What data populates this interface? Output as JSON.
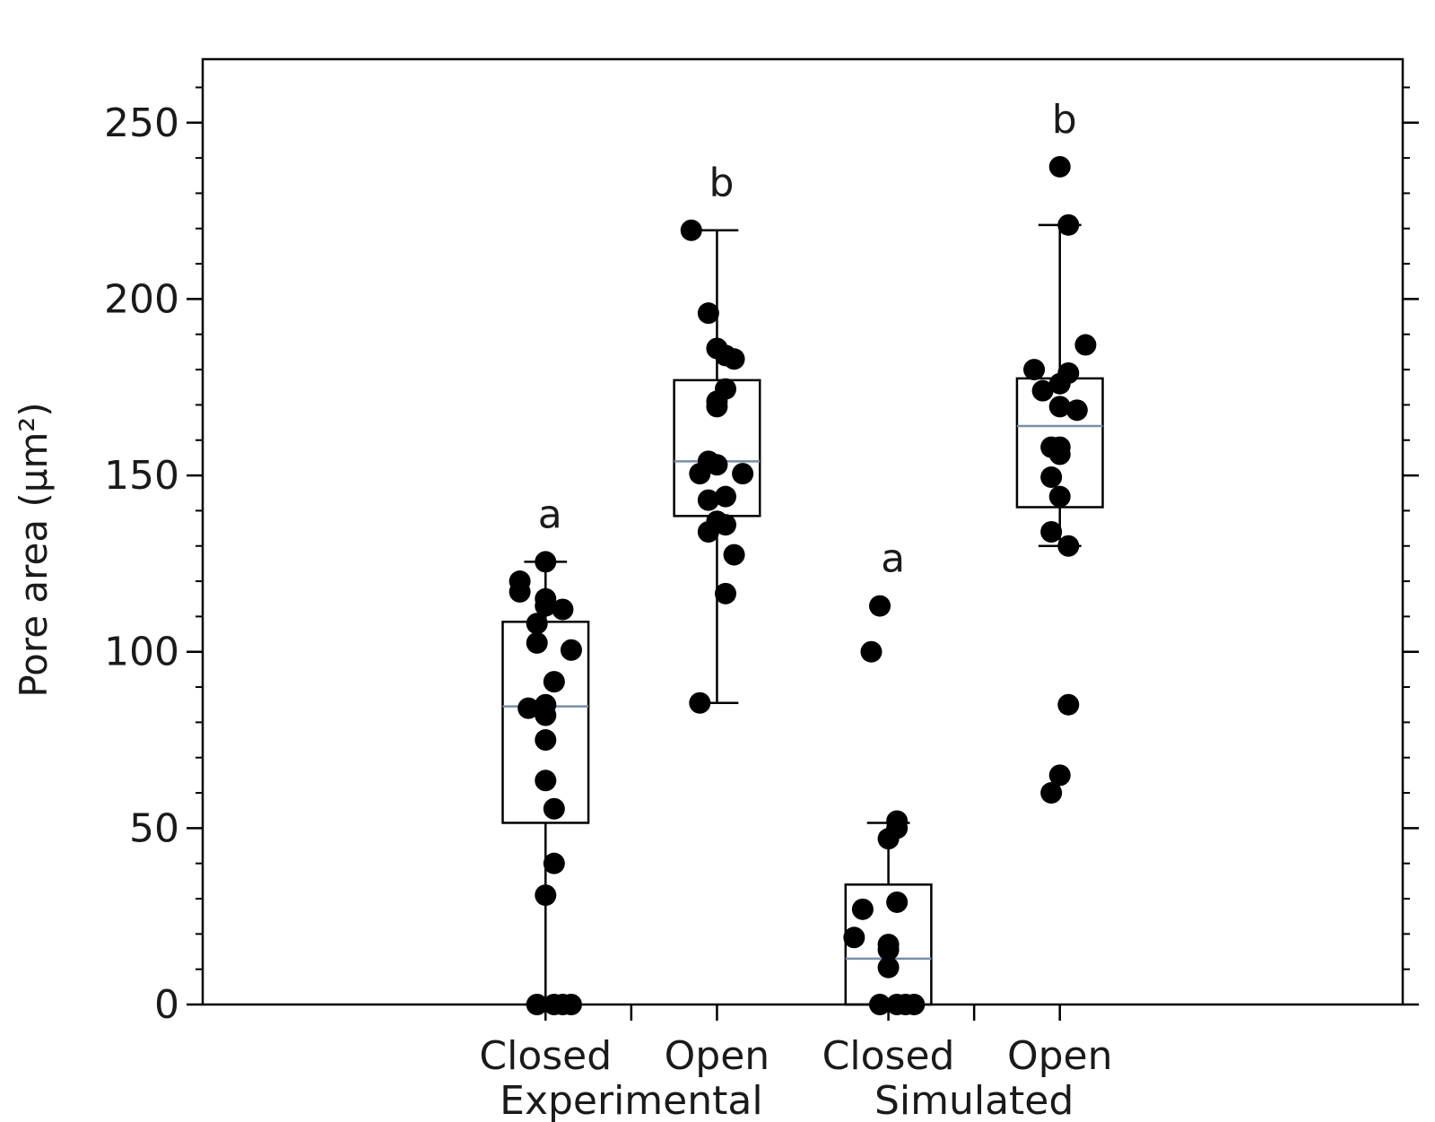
{
  "chart_data": {
    "type": "box",
    "ylabel": "Pore area (μm²)",
    "ylim": [
      0,
      268
    ],
    "yticks": [
      0,
      50,
      100,
      150,
      200,
      250
    ],
    "y_minor_step": 10,
    "grid": false,
    "groups": [
      {
        "name": "Experimental",
        "categories": [
          {
            "label": "Closed",
            "significance": "a",
            "box": {
              "whisker_low": 0,
              "q1": 51.5,
              "median": 84.5,
              "q3": 108.5,
              "whisker_high": 125.5
            },
            "points": [
              {
                "x": 0.0,
                "y": 125.5
              },
              {
                "x": -0.15,
                "y": 120
              },
              {
                "x": -0.15,
                "y": 117
              },
              {
                "x": 0.0,
                "y": 115
              },
              {
                "x": 0.0,
                "y": 113
              },
              {
                "x": 0.1,
                "y": 112
              },
              {
                "x": -0.05,
                "y": 108
              },
              {
                "x": -0.05,
                "y": 102.5
              },
              {
                "x": 0.15,
                "y": 100.5
              },
              {
                "x": 0.05,
                "y": 91.5
              },
              {
                "x": -0.1,
                "y": 84
              },
              {
                "x": 0.0,
                "y": 85
              },
              {
                "x": 0.0,
                "y": 82
              },
              {
                "x": 0.0,
                "y": 75
              },
              {
                "x": 0.0,
                "y": 63.5
              },
              {
                "x": 0.05,
                "y": 55.5
              },
              {
                "x": 0.05,
                "y": 40
              },
              {
                "x": 0.0,
                "y": 31
              },
              {
                "x": -0.05,
                "y": 0
              },
              {
                "x": 0.05,
                "y": 0
              },
              {
                "x": 0.1,
                "y": 0
              },
              {
                "x": 0.15,
                "y": 0
              }
            ]
          },
          {
            "label": "Open",
            "significance": "b",
            "box": {
              "whisker_low": 85.5,
              "q1": 138.5,
              "median": 154,
              "q3": 177,
              "whisker_high": 219.5
            },
            "points": [
              {
                "x": -0.15,
                "y": 219.5
              },
              {
                "x": -0.05,
                "y": 196
              },
              {
                "x": 0.0,
                "y": 186
              },
              {
                "x": 0.05,
                "y": 184
              },
              {
                "x": 0.1,
                "y": 183
              },
              {
                "x": 0.05,
                "y": 174.5
              },
              {
                "x": 0.0,
                "y": 171
              },
              {
                "x": 0.0,
                "y": 169.5
              },
              {
                "x": -0.05,
                "y": 154
              },
              {
                "x": 0.0,
                "y": 153
              },
              {
                "x": -0.1,
                "y": 150.5
              },
              {
                "x": 0.15,
                "y": 150.5
              },
              {
                "x": -0.05,
                "y": 143
              },
              {
                "x": 0.05,
                "y": 144
              },
              {
                "x": 0.0,
                "y": 137
              },
              {
                "x": 0.05,
                "y": 136
              },
              {
                "x": -0.05,
                "y": 134
              },
              {
                "x": 0.1,
                "y": 127.5
              },
              {
                "x": 0.05,
                "y": 116.5
              },
              {
                "x": -0.1,
                "y": 85.5
              }
            ]
          }
        ]
      },
      {
        "name": "Simulated",
        "categories": [
          {
            "label": "Closed",
            "significance": "a",
            "box": {
              "whisker_low": 0,
              "q1": 0,
              "median": 13,
              "q3": 34,
              "whisker_high": 51.5
            },
            "points": [
              {
                "x": -0.05,
                "y": 113
              },
              {
                "x": -0.1,
                "y": 100
              },
              {
                "x": 0.05,
                "y": 52
              },
              {
                "x": 0.05,
                "y": 50
              },
              {
                "x": 0.0,
                "y": 47
              },
              {
                "x": 0.05,
                "y": 29
              },
              {
                "x": -0.15,
                "y": 27
              },
              {
                "x": -0.2,
                "y": 19
              },
              {
                "x": 0.0,
                "y": 17
              },
              {
                "x": 0.0,
                "y": 15.5
              },
              {
                "x": 0.0,
                "y": 10.5
              },
              {
                "x": -0.05,
                "y": 0
              },
              {
                "x": 0.05,
                "y": 0
              },
              {
                "x": 0.1,
                "y": 0
              },
              {
                "x": 0.15,
                "y": 0
              }
            ]
          },
          {
            "label": "Open",
            "significance": "b",
            "box": {
              "whisker_low": 130,
              "q1": 141,
              "median": 164,
              "q3": 177.5,
              "whisker_high": 221
            },
            "points": [
              {
                "x": 0.0,
                "y": 237.5
              },
              {
                "x": 0.05,
                "y": 221
              },
              {
                "x": 0.15,
                "y": 187
              },
              {
                "x": -0.15,
                "y": 180
              },
              {
                "x": 0.05,
                "y": 179
              },
              {
                "x": 0.0,
                "y": 176
              },
              {
                "x": -0.1,
                "y": 174
              },
              {
                "x": 0.0,
                "y": 169.5
              },
              {
                "x": 0.1,
                "y": 168.5
              },
              {
                "x": -0.05,
                "y": 158
              },
              {
                "x": 0.0,
                "y": 158
              },
              {
                "x": 0.0,
                "y": 156
              },
              {
                "x": -0.05,
                "y": 149.5
              },
              {
                "x": 0.0,
                "y": 144
              },
              {
                "x": -0.05,
                "y": 134
              },
              {
                "x": 0.05,
                "y": 130
              },
              {
                "x": 0.05,
                "y": 85
              },
              {
                "x": 0.0,
                "y": 65
              },
              {
                "x": -0.05,
                "y": 60
              }
            ]
          }
        ]
      }
    ],
    "colors": {
      "points": "#000000",
      "median": "#7a8ea8",
      "box": "#000000",
      "axis": "#000000"
    }
  }
}
